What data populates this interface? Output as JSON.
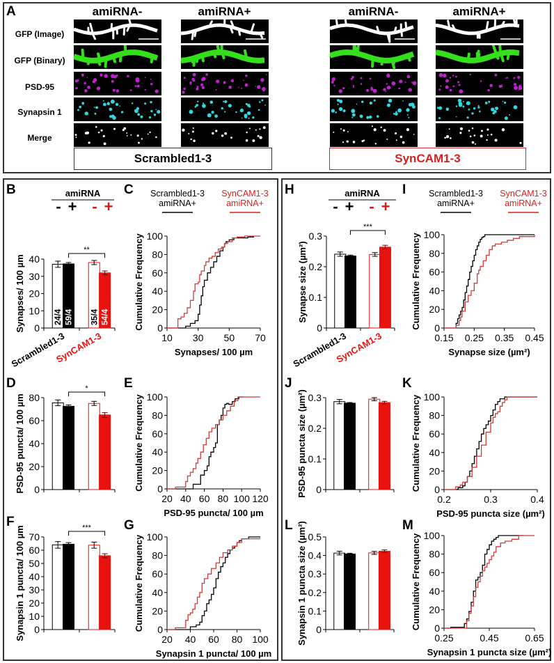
{
  "panel_a": {
    "label": "A",
    "columns": [
      "amiRNA-",
      "amiRNA+",
      "amiRNA-",
      "amiRNA+"
    ],
    "rows": [
      "GFP (Image)",
      "GFP (Binary)",
      "PSD-95",
      "Synapsin 1",
      "Merge"
    ],
    "groups": [
      {
        "name": "Scrambled1-3",
        "color": "#000000"
      },
      {
        "name": "SynCAM1-3",
        "color": "#d42020"
      }
    ],
    "channel_colors": {
      "gfp_image": "#ffffff",
      "gfp_binary": "#33e01a",
      "psd95": "#c020d0",
      "synapsin": "#30d8e0",
      "merge": "#ffffff"
    }
  },
  "legend": {
    "amirna_header": "amiRNA",
    "signs": [
      "-",
      "+",
      "-",
      "+"
    ],
    "curve_legend": [
      {
        "line1": "Scrambled1-3",
        "line2": "amiRNA+",
        "color": "#000000"
      },
      {
        "line1": "SynCAM1-3",
        "line2": "amiRNA+",
        "color": "#d42020"
      }
    ],
    "group_ticks": [
      "Scrambled1-3",
      "SynCAM1-3"
    ]
  },
  "colors": {
    "black": "#000000",
    "red": "#e8130f",
    "red_line": "#d03a3a"
  },
  "chart_data": [
    {
      "id": "B",
      "type": "bar",
      "title": "",
      "ylabel": "Synapses/ 100 µm",
      "ylim": [
        0,
        40
      ],
      "yticks": [
        0,
        10,
        20,
        30,
        40
      ],
      "categories": [
        "Scrambled1-3 amiRNA-",
        "Scrambled1-3 amiRNA+",
        "SynCAM1-3 amiRNA-",
        "SynCAM1-3 amiRNA+"
      ],
      "values": [
        37,
        37.2,
        38,
        32
      ],
      "errors": [
        1.8,
        0.8,
        1.2,
        1.1
      ],
      "n_labels": [
        "24/4",
        "59/4",
        "35/4",
        "54/4"
      ],
      "significance": {
        "from": 1,
        "to": 3,
        "label": "**"
      },
      "group_labels": [
        "Scrambled1-3",
        "SynCAM1-3"
      ]
    },
    {
      "id": "C",
      "type": "line",
      "xlabel": "Synapses/ 100 µm",
      "ylabel": "Cumulative Frequency",
      "xlim": [
        10,
        70
      ],
      "ylim": [
        0,
        100
      ],
      "xticks": [
        10,
        30,
        50,
        70
      ],
      "yticks": [
        0,
        20,
        40,
        60,
        80,
        100
      ],
      "series": [
        {
          "name": "Scrambled1-3 amiRNA+",
          "color": "#000000",
          "x": [
            10,
            21,
            22,
            25,
            28,
            30,
            31,
            32,
            33,
            34,
            36,
            38,
            40,
            42,
            44,
            46,
            47,
            48,
            50,
            53,
            60,
            62,
            66
          ],
          "y": [
            0,
            0,
            2,
            5,
            8,
            15,
            25,
            35,
            45,
            52,
            60,
            66,
            72,
            78,
            84,
            88,
            92,
            94,
            96,
            98,
            98,
            99,
            99
          ]
        },
        {
          "name": "SynCAM1-3 amiRNA+",
          "color": "#d03a3a",
          "x": [
            10,
            16,
            17,
            19,
            21,
            23,
            25,
            27,
            28,
            30,
            31,
            32,
            34,
            35,
            37,
            39,
            41,
            43,
            45,
            47,
            49,
            52,
            55,
            60,
            70
          ],
          "y": [
            0,
            0,
            10,
            12,
            16,
            22,
            30,
            40,
            48,
            50,
            58,
            62,
            68,
            72,
            76,
            78,
            82,
            86,
            88,
            92,
            94,
            98,
            99,
            100,
            100
          ]
        }
      ]
    },
    {
      "id": "D",
      "type": "bar",
      "ylabel": "PSD-95 puncta/ 100 µm",
      "ylim": [
        0,
        80
      ],
      "yticks": [
        0,
        20,
        40,
        60,
        80
      ],
      "categories": [
        "Scrambled1-3 amiRNA-",
        "Scrambled1-3 amiRNA+",
        "SynCAM1-3 amiRNA-",
        "SynCAM1-3 amiRNA+"
      ],
      "values": [
        75.5,
        72.5,
        75,
        65
      ],
      "errors": [
        2.5,
        1.2,
        1.8,
        2
      ],
      "significance": {
        "from": 1,
        "to": 3,
        "label": "*"
      }
    },
    {
      "id": "E",
      "type": "line",
      "xlabel": "PSD-95 puncta/ 100 µm",
      "ylabel": "Cumulative Frequency",
      "xlim": [
        20,
        120
      ],
      "ylim": [
        0,
        100
      ],
      "xticks": [
        20,
        40,
        60,
        80,
        100,
        120
      ],
      "yticks": [
        0,
        20,
        40,
        60,
        80,
        100
      ],
      "series": [
        {
          "name": "Scrambled1-3 amiRNA+",
          "color": "#000000",
          "x": [
            20,
            47,
            48,
            53,
            56,
            60,
            63,
            65,
            67,
            70,
            72,
            74,
            76,
            78,
            80,
            82,
            84,
            86,
            90,
            93,
            97,
            102
          ],
          "y": [
            0,
            0,
            5,
            5,
            15,
            20,
            25,
            35,
            40,
            45,
            50,
            70,
            75,
            80,
            88,
            92,
            93,
            92,
            95,
            98,
            100,
            100
          ]
        },
        {
          "name": "SynCAM1-3 amiRNA+",
          "color": "#d03a3a",
          "x": [
            20,
            29,
            39,
            40,
            42,
            45,
            48,
            51,
            53,
            56,
            59,
            62,
            65,
            68,
            72,
            76,
            80,
            84,
            88,
            92,
            96,
            120
          ],
          "y": [
            0,
            2,
            2,
            8,
            14,
            18,
            22,
            28,
            33,
            40,
            48,
            55,
            62,
            66,
            70,
            75,
            80,
            85,
            90,
            96,
            100,
            100
          ]
        }
      ]
    },
    {
      "id": "F",
      "type": "bar",
      "ylabel": "Synapsin 1 puncta/ 100 µm",
      "ylim": [
        0,
        70
      ],
      "yticks": [
        0,
        10,
        20,
        30,
        40,
        50,
        60,
        70
      ],
      "categories": [
        "Scrambled1-3 amiRNA-",
        "Scrambled1-3 amiRNA+",
        "SynCAM1-3 amiRNA-",
        "SynCAM1-3 amiRNA+"
      ],
      "values": [
        64,
        64.5,
        63.8,
        55.8
      ],
      "errors": [
        2.5,
        1.2,
        2.3,
        1.5
      ],
      "significance": {
        "from": 1,
        "to": 3,
        "label": "***"
      }
    },
    {
      "id": "G",
      "type": "line",
      "xlabel": "Synapsin 1 puncta/ 100 µm",
      "ylabel": "Cumulative Frequency",
      "xlim": [
        20,
        100
      ],
      "ylim": [
        0,
        100
      ],
      "xticks": [
        20,
        40,
        60,
        80,
        100
      ],
      "yticks": [
        0,
        20,
        40,
        60,
        80,
        100
      ],
      "series": [
        {
          "name": "Scrambled1-3 amiRNA+",
          "color": "#000000",
          "x": [
            20,
            39,
            40,
            45,
            48,
            50,
            52,
            54,
            56,
            58,
            60,
            62,
            64,
            66,
            68,
            70,
            72,
            74,
            76,
            78,
            80,
            82,
            84,
            90,
            100
          ],
          "y": [
            0,
            0,
            3,
            5,
            8,
            15,
            20,
            28,
            32,
            38,
            45,
            55,
            62,
            68,
            72,
            78,
            82,
            86,
            88,
            90,
            94,
            96,
            98,
            100,
            100
          ]
        },
        {
          "name": "SynCAM1-3 amiRNA+",
          "color": "#d03a3a",
          "x": [
            20,
            27,
            34,
            36,
            38,
            40,
            42,
            44,
            46,
            48,
            50,
            52,
            55,
            58,
            62,
            65,
            68,
            72,
            76,
            80,
            84,
            100
          ],
          "y": [
            0,
            2,
            2,
            10,
            16,
            18,
            22,
            28,
            35,
            40,
            50,
            55,
            60,
            66,
            72,
            78,
            83,
            86,
            90,
            94,
            98,
            98
          ]
        }
      ]
    },
    {
      "id": "H",
      "type": "bar",
      "ylabel": "Synapse size (µm²)",
      "ylim": [
        0,
        0.3
      ],
      "yticks": [
        0,
        0.1,
        0.2,
        0.3
      ],
      "categories": [
        "Scrambled1-3 amiRNA-",
        "Scrambled1-3 amiRNA+",
        "SynCAM1-3 amiRNA-",
        "SynCAM1-3 amiRNA+"
      ],
      "values": [
        0.241,
        0.235,
        0.24,
        0.264
      ],
      "errors": [
        0.007,
        0.003,
        0.006,
        0.006
      ],
      "significance": {
        "from": 1,
        "to": 3,
        "label": "***"
      },
      "group_labels": [
        "Scrambled1-3",
        "SynCAM1-3"
      ]
    },
    {
      "id": "I",
      "type": "line",
      "xlabel": "Synapse size (µm²)",
      "ylabel": "Cumulative Frequency",
      "xlim": [
        0.15,
        0.45
      ],
      "ylim": [
        0,
        100
      ],
      "xticks": [
        0.15,
        0.25,
        0.35,
        0.45
      ],
      "yticks": [
        0,
        20,
        40,
        60,
        80,
        100
      ],
      "series": [
        {
          "name": "Scrambled1-3 amiRNA+",
          "color": "#000000",
          "x": [
            0.15,
            0.188,
            0.19,
            0.195,
            0.2,
            0.205,
            0.21,
            0.215,
            0.22,
            0.225,
            0.23,
            0.235,
            0.24,
            0.245,
            0.25,
            0.255,
            0.26,
            0.265,
            0.27,
            0.275,
            0.28,
            0.285,
            0.45
          ],
          "y": [
            0,
            0,
            5,
            10,
            14,
            18,
            22,
            30,
            38,
            45,
            52,
            60,
            66,
            72,
            78,
            84,
            88,
            92,
            95,
            97,
            98,
            100,
            100
          ]
        },
        {
          "name": "SynCAM1-3 amiRNA+",
          "color": "#d03a3a",
          "x": [
            0.15,
            0.185,
            0.19,
            0.2,
            0.205,
            0.21,
            0.22,
            0.23,
            0.24,
            0.25,
            0.26,
            0.265,
            0.27,
            0.28,
            0.29,
            0.3,
            0.31,
            0.32,
            0.34,
            0.36,
            0.38,
            0.4,
            0.43,
            0.45
          ],
          "y": [
            0,
            0,
            3,
            8,
            12,
            18,
            28,
            35,
            40,
            48,
            58,
            62,
            66,
            72,
            78,
            84,
            88,
            90,
            92,
            94,
            96,
            98,
            98,
            100
          ]
        }
      ]
    },
    {
      "id": "J",
      "type": "bar",
      "ylabel": "PSD-95 puncta size (µm²)",
      "ylim": [
        0,
        0.3
      ],
      "yticks": [
        0,
        0.1,
        0.2,
        0.3
      ],
      "categories": [
        "Scrambled1-3 amiRNA-",
        "Scrambled1-3 amiRNA+",
        "SynCAM1-3 amiRNA-",
        "SynCAM1-3 amiRNA+"
      ],
      "values": [
        0.287,
        0.282,
        0.295,
        0.284
      ],
      "errors": [
        0.007,
        0.002,
        0.005,
        0.004
      ]
    },
    {
      "id": "K",
      "type": "line",
      "xlabel": "PSD-95 puncta size (µm²)",
      "ylabel": "Cumulative Frequency",
      "xlim": [
        0.2,
        0.4
      ],
      "ylim": [
        0,
        100
      ],
      "xticks": [
        0.2,
        0.3,
        0.4
      ],
      "yticks": [
        0,
        20,
        40,
        60,
        80,
        100
      ],
      "series": [
        {
          "name": "Scrambled1-3 amiRNA+",
          "color": "#000000",
          "x": [
            0.2,
            0.228,
            0.23,
            0.24,
            0.245,
            0.25,
            0.255,
            0.26,
            0.265,
            0.27,
            0.275,
            0.28,
            0.285,
            0.29,
            0.295,
            0.3,
            0.305,
            0.31,
            0.315,
            0.32,
            0.33,
            0.4
          ],
          "y": [
            0,
            0,
            2,
            4,
            8,
            14,
            20,
            28,
            36,
            44,
            52,
            60,
            66,
            70,
            74,
            80,
            86,
            92,
            95,
            98,
            100,
            100
          ]
        },
        {
          "name": "SynCAM1-3 amiRNA+",
          "color": "#d03a3a",
          "x": [
            0.2,
            0.22,
            0.225,
            0.235,
            0.24,
            0.25,
            0.26,
            0.27,
            0.28,
            0.29,
            0.3,
            0.305,
            0.31,
            0.315,
            0.32,
            0.325,
            0.33,
            0.335,
            0.4
          ],
          "y": [
            0,
            0,
            3,
            5,
            8,
            14,
            24,
            36,
            48,
            62,
            72,
            78,
            82,
            84,
            90,
            94,
            97,
            100,
            100
          ]
        }
      ]
    },
    {
      "id": "L",
      "type": "bar",
      "ylabel": "Synapsin 1 puncta size (µm²)",
      "ylim": [
        0,
        0.5
      ],
      "yticks": [
        0,
        0.1,
        0.2,
        0.3,
        0.4,
        0.5
      ],
      "categories": [
        "Scrambled1-3 amiRNA-",
        "Scrambled1-3 amiRNA+",
        "SynCAM1-3 amiRNA-",
        "SynCAM1-3 amiRNA+"
      ],
      "values": [
        0.413,
        0.408,
        0.414,
        0.423
      ],
      "errors": [
        0.01,
        0.004,
        0.008,
        0.007
      ]
    },
    {
      "id": "M",
      "type": "line",
      "xlabel": "Synapsin 1 puncta size (µm²)",
      "ylabel": "Cumulative Frequency",
      "xlim": [
        0.25,
        0.65
      ],
      "ylim": [
        0,
        100
      ],
      "xticks": [
        0.25,
        0.45,
        0.65
      ],
      "yticks": [
        0,
        20,
        40,
        60,
        80,
        100
      ],
      "series": [
        {
          "name": "Scrambled1-3 amiRNA+",
          "color": "#000000",
          "x": [
            0.25,
            0.28,
            0.33,
            0.34,
            0.35,
            0.36,
            0.37,
            0.38,
            0.39,
            0.4,
            0.41,
            0.42,
            0.43,
            0.44,
            0.45,
            0.46,
            0.47,
            0.48,
            0.49,
            0.5,
            0.6
          ],
          "y": [
            0,
            1,
            1,
            5,
            10,
            18,
            28,
            40,
            52,
            55,
            60,
            68,
            80,
            85,
            90,
            94,
            96,
            98,
            100,
            100,
            100
          ]
        },
        {
          "name": "SynCAM1-3 amiRNA+",
          "color": "#d03a3a",
          "x": [
            0.25,
            0.34,
            0.35,
            0.36,
            0.37,
            0.38,
            0.39,
            0.4,
            0.41,
            0.42,
            0.43,
            0.44,
            0.45,
            0.46,
            0.47,
            0.48,
            0.5,
            0.52,
            0.55,
            0.58,
            0.65
          ],
          "y": [
            0,
            0,
            8,
            16,
            24,
            34,
            44,
            50,
            56,
            62,
            66,
            70,
            74,
            78,
            82,
            88,
            92,
            94,
            96,
            100,
            100
          ]
        }
      ]
    }
  ]
}
